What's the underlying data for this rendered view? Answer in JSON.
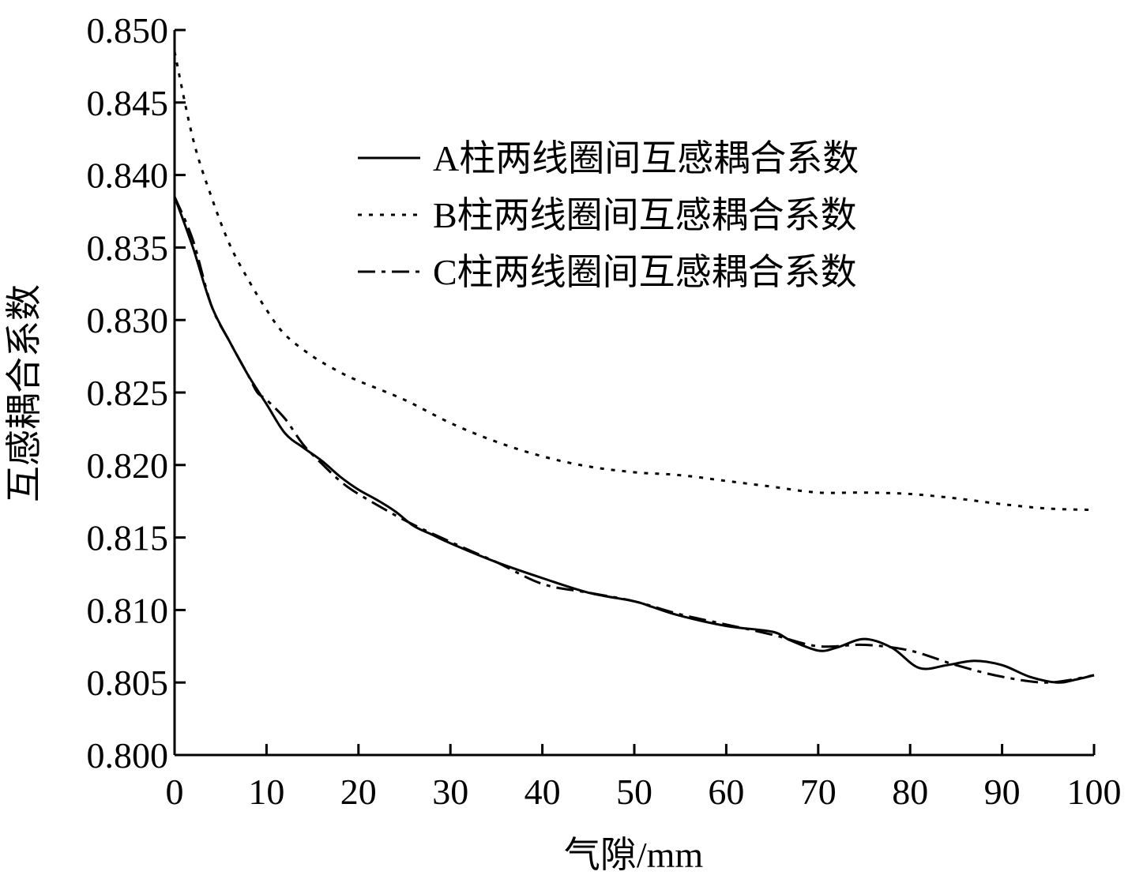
{
  "chart_data": {
    "type": "line",
    "xlabel": "气隙/mm",
    "ylabel": "互感耦合系数",
    "xlim": [
      0,
      100
    ],
    "ylim": [
      0.8,
      0.85
    ],
    "x_ticks": [
      "0",
      "10",
      "20",
      "30",
      "40",
      "50",
      "60",
      "70",
      "80",
      "90",
      "100"
    ],
    "y_ticks": [
      "0.800",
      "0.805",
      "0.810",
      "0.815",
      "0.820",
      "0.825",
      "0.830",
      "0.835",
      "0.840",
      "0.845",
      "0.850"
    ],
    "grid": false,
    "legend_position": "top-right",
    "series": [
      {
        "name": "A柱两线圈间互感耦合系数",
        "line_style": "solid",
        "x": [
          0,
          2,
          4,
          6,
          8,
          10,
          12,
          14,
          16,
          18,
          20,
          22,
          24,
          26,
          28,
          30,
          35,
          40,
          45,
          50,
          52,
          55,
          60,
          65,
          67,
          70,
          72,
          75,
          78,
          81,
          84,
          87,
          90,
          93,
          96,
          98,
          100
        ],
        "y": [
          0.8385,
          0.835,
          0.831,
          0.8285,
          0.8262,
          0.8242,
          0.8222,
          0.8212,
          0.8203,
          0.8192,
          0.8183,
          0.8176,
          0.8168,
          0.8158,
          0.8152,
          0.8146,
          0.8133,
          0.8122,
          0.8112,
          0.8106,
          0.8102,
          0.8096,
          0.8089,
          0.8085,
          0.8079,
          0.8072,
          0.8074,
          0.808,
          0.8074,
          0.806,
          0.8062,
          0.8065,
          0.8062,
          0.8054,
          0.805,
          0.8052,
          0.8055
        ]
      },
      {
        "name": "B柱两线圈间互感耦合系数",
        "line_style": "dotted",
        "x": [
          0,
          2,
          4,
          6,
          8,
          10,
          12,
          15,
          18,
          20,
          25,
          30,
          35,
          40,
          45,
          50,
          55,
          60,
          65,
          70,
          75,
          80,
          85,
          90,
          95,
          100
        ],
        "y": [
          0.8485,
          0.8425,
          0.8385,
          0.8352,
          0.8328,
          0.8307,
          0.829,
          0.8275,
          0.8264,
          0.8258,
          0.8245,
          0.8229,
          0.8216,
          0.8206,
          0.8199,
          0.8195,
          0.8193,
          0.8189,
          0.8185,
          0.8181,
          0.8181,
          0.818,
          0.8177,
          0.8173,
          0.817,
          0.8169
        ]
      },
      {
        "name": "C柱两线圈间互感耦合系数",
        "line_style": "dash-dot",
        "x": [
          0,
          2,
          4,
          6,
          8,
          9,
          10,
          12,
          14,
          16,
          18,
          20,
          25,
          30,
          35,
          40,
          45,
          50,
          55,
          60,
          65,
          70,
          75,
          80,
          85,
          90,
          95,
          100
        ],
        "y": [
          0.8385,
          0.8355,
          0.831,
          0.8285,
          0.8262,
          0.825,
          0.8245,
          0.8232,
          0.8214,
          0.8201,
          0.8189,
          0.818,
          0.8162,
          0.8147,
          0.8133,
          0.8118,
          0.8112,
          0.8106,
          0.8097,
          0.809,
          0.8083,
          0.8075,
          0.8076,
          0.8072,
          0.8062,
          0.8054,
          0.805,
          0.8055
        ]
      }
    ]
  }
}
